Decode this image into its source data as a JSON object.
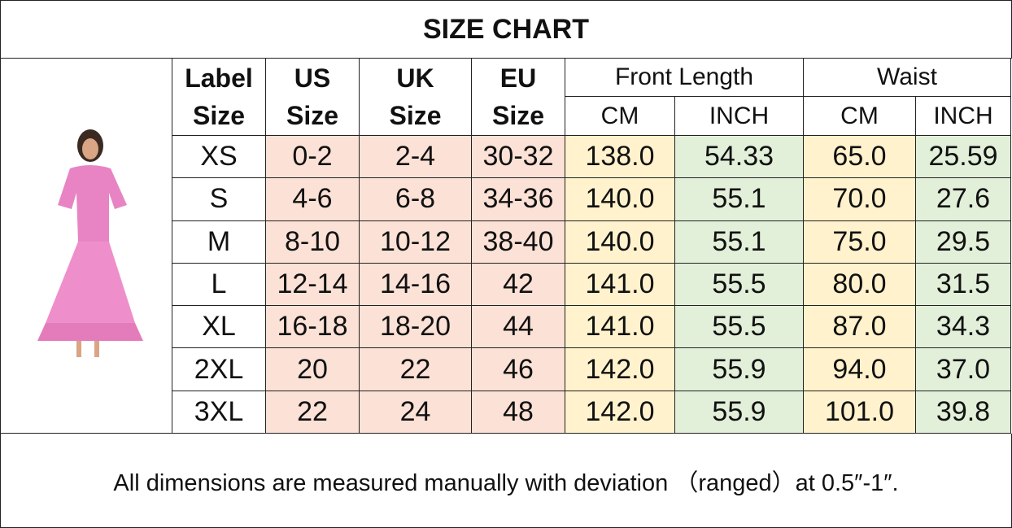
{
  "header": {
    "title": "SIZE CHART"
  },
  "table": {
    "head_cells": [
      [
        "Label",
        "Size"
      ],
      [
        "US",
        "Size"
      ],
      [
        "UK",
        "Size"
      ],
      [
        "EU",
        "Size"
      ]
    ],
    "groups": [
      {
        "title": "Front Length",
        "sub": [
          "CM",
          "INCH"
        ]
      },
      {
        "title": "Waist",
        "sub": [
          "CM",
          "INCH"
        ]
      }
    ],
    "rows": [
      [
        "XS",
        "0-2",
        "2-4",
        "30-32",
        "138.0",
        "54.33",
        "65.0",
        "25.59"
      ],
      [
        "S",
        "4-6",
        "6-8",
        "34-36",
        "140.0",
        "55.1",
        "70.0",
        "27.6"
      ],
      [
        "M",
        "8-10",
        "10-12",
        "38-40",
        "140.0",
        "55.1",
        "75.0",
        "29.5"
      ],
      [
        "L",
        "12-14",
        "14-16",
        "42",
        "141.0",
        "55.5",
        "80.0",
        "31.5"
      ],
      [
        "XL",
        "16-18",
        "18-20",
        "44",
        "141.0",
        "55.5",
        "87.0",
        "34.3"
      ],
      [
        "2XL",
        "20",
        "22",
        "46",
        "142.0",
        "55.9",
        "94.0",
        "37.0"
      ],
      [
        "3XL",
        "22",
        "24",
        "48",
        "142.0",
        "55.9",
        "101.0",
        "39.8"
      ]
    ]
  },
  "footer": {
    "note": "All dimensions are measured manually with deviation （ranged）at 0.5″-1″."
  }
}
